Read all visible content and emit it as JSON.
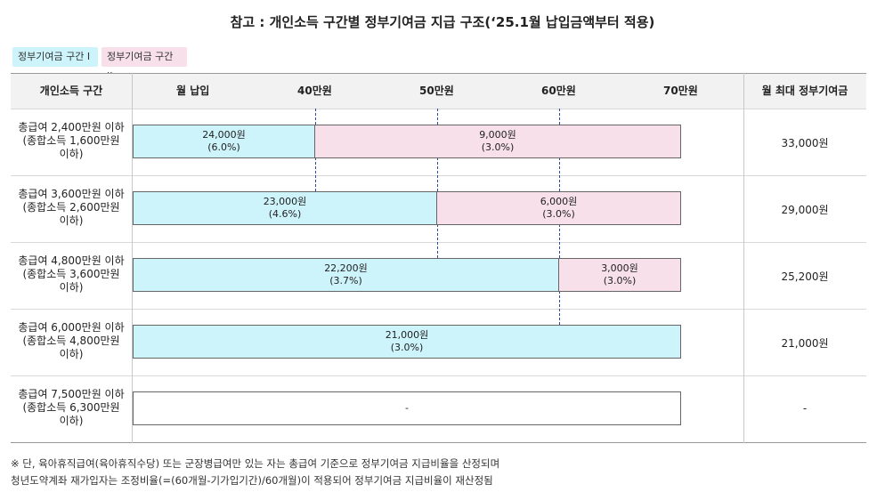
{
  "title": "참고 : 개인소득 구간별 정부기여금 지급 구조(‘25.1월 납입금액부터 적용)",
  "legend": [
    "정부기여금 구간 I",
    "정부기여금 구간 II"
  ],
  "header": {
    "income": "개인소득 구간",
    "monthly": "월 납입",
    "ticks": [
      "40만원",
      "50만원",
      "60만원",
      "70만원"
    ],
    "max": "월 최대 정부기여금"
  },
  "rows": [
    {
      "l1": "총급여 2,400만원 이하",
      "l2": "(종합소득 1,600만원",
      "l3": "이하)",
      "max": "33,000원"
    },
    {
      "l1": "총급여 3,600만원 이하",
      "l2": "(종합소득 2,600만원",
      "l3": "이하)",
      "max": "29,000원"
    },
    {
      "l1": "총급여 4,800만원 이하",
      "l2": "(종합소득 3,600만원",
      "l3": "이하)",
      "max": "25,200원"
    },
    {
      "l1": "총급여 6,000만원 이하",
      "l2": "(종합소득 4,800만원",
      "l3": "이하)",
      "max": "21,000원"
    },
    {
      "l1": "총급여 7,500만원 이하",
      "l2": "(종합소득 6,300만원",
      "l3": "이하)",
      "max": "-"
    }
  ],
  "chart_data": {
    "type": "bar",
    "orientation": "horizontal-stacked",
    "x_unit": "만원",
    "xlim": [
      25,
      70
    ],
    "x_ticks": [
      40,
      50,
      60,
      70
    ],
    "categories": [
      "총급여 2,400만원 이하",
      "총급여 3,600만원 이하",
      "총급여 4,800만원 이하",
      "총급여 6,000만원 이하",
      "총급여 7,500만원 이하"
    ],
    "series": [
      {
        "name": "정부기여금 구간 I",
        "color": "#cdf3fb",
        "ranges": [
          [
            25,
            40
          ],
          [
            25,
            50
          ],
          [
            25,
            60
          ],
          [
            25,
            70
          ],
          null
        ],
        "values": [
          "24,000원",
          "23,000원",
          "22,200원",
          "21,000원",
          null
        ],
        "rates": [
          "(6.0%)",
          "(4.6%)",
          "(3.7%)",
          "(3.0%)",
          null
        ]
      },
      {
        "name": "정부기여금 구간 II",
        "color": "#f7e0ea",
        "ranges": [
          [
            40,
            70
          ],
          [
            50,
            70
          ],
          [
            60,
            70
          ],
          null,
          null
        ],
        "values": [
          "9,000원",
          "6,000원",
          "3,000원",
          null,
          null
        ],
        "rates": [
          "(3.0%)",
          "(3.0%)",
          "(3.0%)",
          null,
          null
        ]
      }
    ],
    "empty_label": "-"
  },
  "notes": [
    "※ 단, 육아휴직급여(육아휴직수당) 또는 군장병급여만 있는 자는 총급여 기준으로 정부기여금 지급비율을 산정되며",
    "청년도약계좌 재가입자는 조정비율(=(60개월-기가입기간)/60개월)이 적용되어 정부기여금 지급비율이 재산정됨"
  ]
}
